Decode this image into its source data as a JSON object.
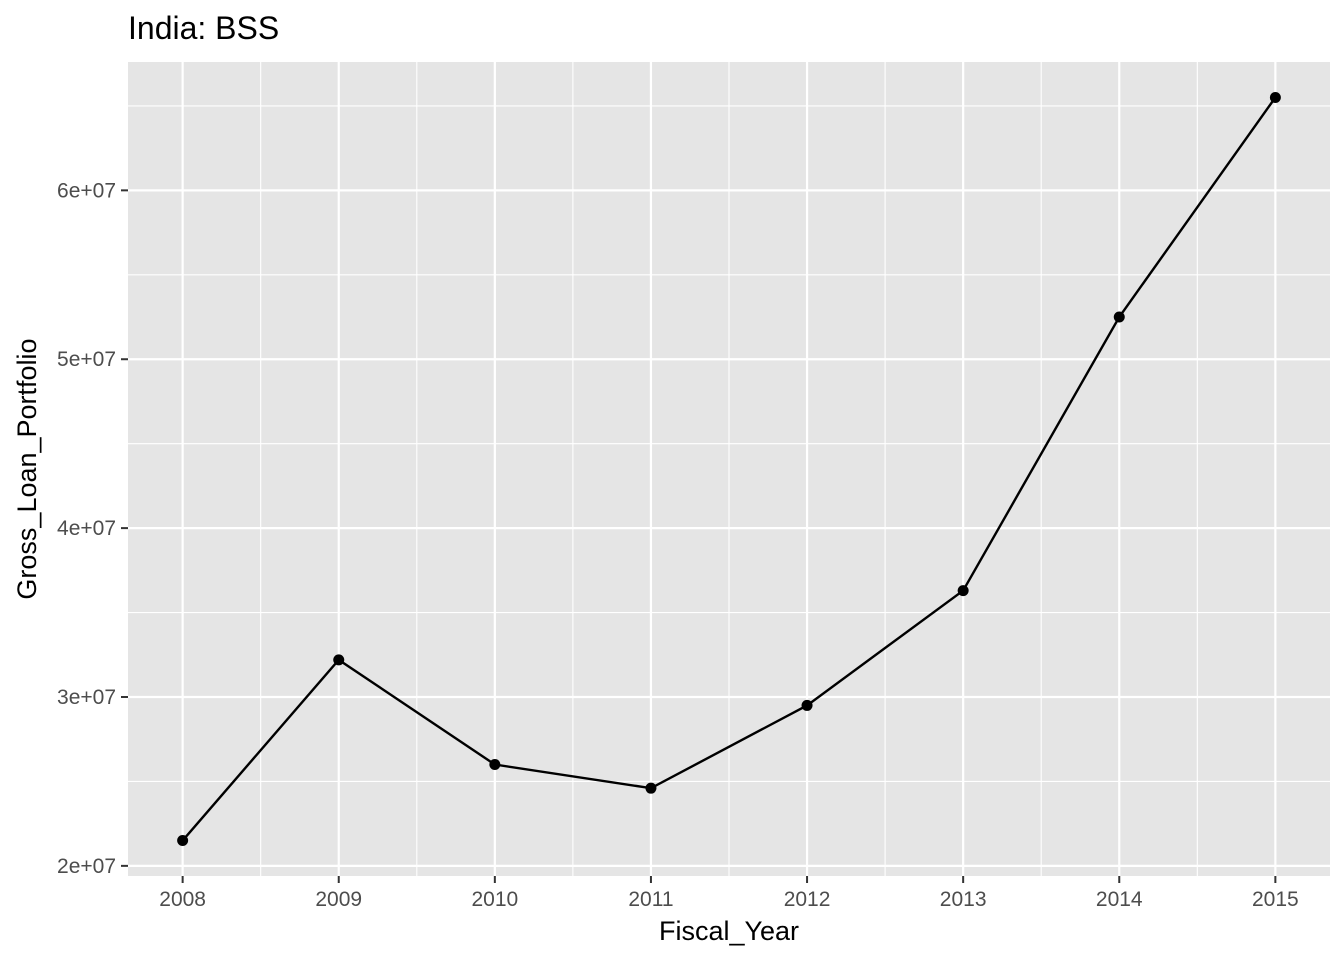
{
  "chart_data": {
    "type": "line",
    "title": "India:  BSS",
    "xlabel": "Fiscal_Year",
    "ylabel": "Gross_Loan_Portfolio",
    "x": [
      2008,
      2009,
      2010,
      2011,
      2012,
      2013,
      2014,
      2015
    ],
    "x_tick_labels": [
      "2008",
      "2009",
      "2010",
      "2011",
      "2012",
      "2013",
      "2014",
      "2015"
    ],
    "y_ticks": [
      20000000,
      30000000,
      40000000,
      50000000,
      60000000
    ],
    "y_tick_labels": [
      "2e+07",
      "3e+07",
      "4e+07",
      "5e+07",
      "6e+07"
    ],
    "xlim": [
      2007.65,
      2015.35
    ],
    "ylim": [
      19400000,
      67600000
    ],
    "grid": true,
    "series": [
      {
        "values": [
          21500000,
          32200000,
          26000000,
          24600000,
          29500000,
          36300000,
          52500000,
          65500000
        ],
        "color": "#000000"
      }
    ]
  }
}
